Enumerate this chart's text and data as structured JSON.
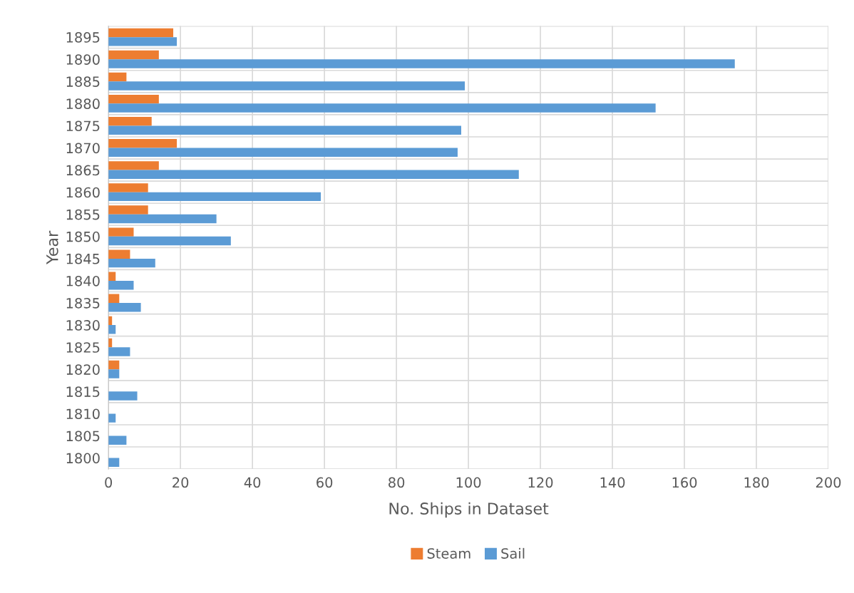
{
  "chart_data": {
    "type": "bar",
    "orientation": "horizontal",
    "xlabel": "No. Ships in Dataset",
    "ylabel": "Year",
    "categories": [
      "1895",
      "1890",
      "1885",
      "1880",
      "1875",
      "1870",
      "1865",
      "1860",
      "1855",
      "1850",
      "1845",
      "1840",
      "1835",
      "1830",
      "1825",
      "1820",
      "1815",
      "1810",
      "1805",
      "1800"
    ],
    "series": [
      {
        "name": "Steam",
        "color": "#ed7d31",
        "values": [
          18,
          14,
          5,
          14,
          12,
          19,
          14,
          11,
          11,
          7,
          6,
          2,
          3,
          1,
          1,
          3,
          0,
          0,
          0,
          0
        ]
      },
      {
        "name": "Sail",
        "color": "#5b9bd5",
        "values": [
          19,
          174,
          99,
          152,
          98,
          97,
          114,
          59,
          30,
          34,
          13,
          7,
          9,
          2,
          6,
          3,
          8,
          2,
          5,
          3
        ]
      }
    ],
    "xlim": [
      0,
      200
    ],
    "xticks": [
      0,
      20,
      40,
      60,
      80,
      100,
      120,
      140,
      160,
      180,
      200
    ],
    "grid": true,
    "legend": "bottom"
  }
}
